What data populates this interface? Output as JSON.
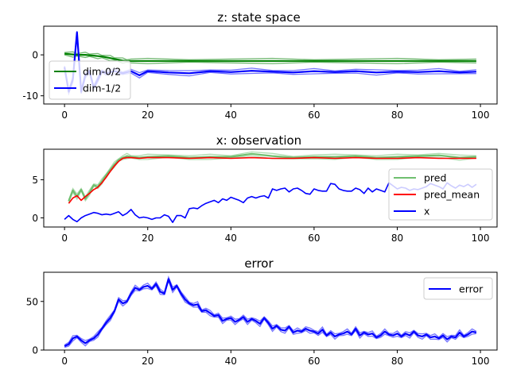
{
  "figure_colors": {
    "green": "#008000",
    "blue": "#0000ff",
    "red": "#ff0000",
    "light_green": "#6fbf6f",
    "light_blue": "#b8b8ff"
  },
  "chart_data": [
    {
      "type": "line",
      "title": "z: state space",
      "xlim": [
        -5,
        104
      ],
      "ylim": [
        -12,
        7
      ],
      "xticks": [
        0,
        20,
        40,
        60,
        80,
        100
      ],
      "yticks": [
        0,
        -10
      ],
      "legend_position": "center-left",
      "series": [
        {
          "name": "dim-0/2",
          "color": "#008000",
          "style": "thick band (multiple samples)",
          "x": [
            0,
            1,
            2,
            3,
            4,
            5,
            6,
            7,
            8,
            9,
            10,
            11,
            12,
            13,
            14,
            15,
            16,
            20,
            30,
            40,
            50,
            60,
            70,
            80,
            90,
            99
          ],
          "y": [
            0.3,
            0.2,
            0.1,
            0.0,
            0.0,
            0.0,
            -0.1,
            -0.2,
            -0.3,
            -0.4,
            -0.6,
            -0.8,
            -1.0,
            -1.2,
            -1.4,
            -1.5,
            -1.5,
            -1.5,
            -1.5,
            -1.5,
            -1.5,
            -1.5,
            -1.5,
            -1.5,
            -1.5,
            -1.5
          ]
        },
        {
          "name": "dim-1/2",
          "color": "#0000ff",
          "style": "noisy band (multiple samples)",
          "x": [
            0,
            1,
            2,
            3,
            4,
            5,
            6,
            7,
            8,
            9,
            10,
            12,
            14,
            16,
            18,
            20,
            25,
            30,
            35,
            40,
            45,
            50,
            55,
            60,
            65,
            70,
            75,
            80,
            85,
            90,
            95,
            99
          ],
          "y": [
            -3,
            -9,
            -6,
            5.5,
            -9,
            -5,
            -4,
            -8,
            -6,
            -4,
            -4.5,
            -4,
            -4.5,
            -4,
            -5,
            -4,
            -4.3,
            -4.5,
            -4,
            -4.2,
            -3.9,
            -4.1,
            -4.3,
            -4,
            -4.2,
            -4,
            -4.3,
            -4.1,
            -4.2,
            -4,
            -4.3,
            -4.1
          ]
        }
      ]
    },
    {
      "type": "line",
      "title": "x: observation",
      "xlim": [
        -5,
        104
      ],
      "ylim": [
        -1.2,
        9
      ],
      "xticks": [
        0,
        20,
        40,
        60,
        80,
        100
      ],
      "yticks": [
        0,
        5
      ],
      "legend_position": "center-right",
      "series": [
        {
          "name": "pred",
          "color": "#6fbf6f",
          "style": "semi-transparent, many samples",
          "x": [
            1,
            2,
            3,
            4,
            5,
            6,
            7,
            8,
            9,
            10,
            11,
            12,
            13,
            14,
            15,
            16,
            18,
            20,
            25,
            30,
            35,
            40,
            45,
            50,
            55,
            60,
            65,
            70,
            75,
            80,
            85,
            90,
            95,
            99
          ],
          "y": [
            2.2,
            3.6,
            2.8,
            3.7,
            2.5,
            3.3,
            4.3,
            4.1,
            4.8,
            5.6,
            6.3,
            7.0,
            7.6,
            7.9,
            8.1,
            8.0,
            7.9,
            8.0,
            8.1,
            7.9,
            8.0,
            8.0,
            8.4,
            8.1,
            7.9,
            8.0,
            8.0,
            8.1,
            7.9,
            8.0,
            8.1,
            8.2,
            7.9,
            8.0
          ]
        },
        {
          "name": "pred_mean",
          "color": "#ff0000",
          "x": [
            1,
            2,
            3,
            4,
            5,
            6,
            7,
            8,
            9,
            10,
            11,
            12,
            13,
            14,
            15,
            16,
            18,
            20,
            25,
            30,
            35,
            40,
            45,
            50,
            55,
            60,
            65,
            70,
            75,
            80,
            85,
            90,
            95,
            99
          ],
          "y": [
            1.9,
            2.6,
            2.9,
            2.3,
            2.8,
            3.2,
            3.7,
            4.0,
            4.6,
            5.3,
            6.1,
            6.8,
            7.4,
            7.8,
            7.9,
            7.9,
            7.8,
            7.9,
            7.9,
            7.8,
            7.9,
            7.8,
            7.9,
            7.8,
            7.8,
            7.9,
            7.8,
            7.9,
            7.8,
            7.8,
            7.9,
            7.8,
            7.8,
            7.8
          ]
        },
        {
          "name": "x",
          "color": "#0000ff",
          "x": [
            0,
            1,
            2,
            3,
            4,
            5,
            6,
            7,
            8,
            9,
            10,
            11,
            12,
            13,
            14,
            15,
            16,
            17,
            18,
            19,
            20,
            21,
            22,
            23,
            24,
            25,
            26,
            27,
            28,
            29,
            30,
            31,
            32,
            33,
            34,
            35,
            36,
            37,
            38,
            39,
            40,
            41,
            42,
            43,
            44,
            45,
            46,
            47,
            48,
            49,
            50,
            51,
            52,
            53,
            54,
            55,
            56,
            57,
            58,
            59,
            60,
            61,
            62,
            63,
            64,
            65,
            66,
            67,
            68,
            69,
            70,
            71,
            72,
            73,
            74,
            75,
            76,
            77,
            78,
            79,
            80,
            81,
            82,
            83,
            84,
            85,
            86,
            87,
            88,
            89,
            90,
            91,
            92,
            93,
            94,
            95,
            96,
            97,
            98,
            99
          ],
          "y": [
            -0.2,
            0.3,
            -0.2,
            -0.5,
            0.0,
            0.3,
            0.5,
            0.7,
            0.6,
            0.4,
            0.5,
            0.4,
            0.6,
            0.8,
            0.3,
            0.6,
            1.1,
            0.4,
            0.0,
            0.1,
            0.0,
            -0.2,
            0.0,
            0.0,
            0.4,
            0.2,
            -0.6,
            0.3,
            0.3,
            0.0,
            1.2,
            1.3,
            1.2,
            1.6,
            1.9,
            2.1,
            2.3,
            2.0,
            2.5,
            2.3,
            2.7,
            2.5,
            2.3,
            2.0,
            2.6,
            2.8,
            2.6,
            2.8,
            2.9,
            2.6,
            3.8,
            3.6,
            3.8,
            3.9,
            3.4,
            3.8,
            3.9,
            3.6,
            3.2,
            3.1,
            3.8,
            3.6,
            3.5,
            3.5,
            4.5,
            4.4,
            3.8,
            3.6,
            3.5,
            3.5,
            3.9,
            3.7,
            3.2,
            3.9,
            3.4,
            3.8,
            3.6,
            3.4,
            4.6,
            4.2,
            3.8,
            4.0,
            3.9,
            3.6,
            3.8,
            3.7,
            3.9,
            4.1,
            4.5,
            4.3,
            4.1,
            3.8,
            4.6,
            4.2,
            3.9,
            4.3,
            4.1,
            4.4,
            4.0,
            4.4
          ]
        }
      ]
    },
    {
      "type": "line",
      "title": "error",
      "xlim": [
        -5,
        104
      ],
      "ylim": [
        0,
        80
      ],
      "xticks": [
        0,
        20,
        40,
        60,
        80,
        100
      ],
      "yticks": [
        0,
        50
      ],
      "legend_position": "top-right",
      "series": [
        {
          "name": "error",
          "color": "#0000ff",
          "style": "thick band (multiple samples)",
          "x": [
            0,
            1,
            2,
            3,
            4,
            5,
            6,
            7,
            8,
            9,
            10,
            11,
            12,
            13,
            14,
            15,
            16,
            17,
            18,
            19,
            20,
            21,
            22,
            23,
            24,
            25,
            26,
            27,
            28,
            29,
            30,
            31,
            32,
            33,
            34,
            35,
            36,
            37,
            38,
            39,
            40,
            41,
            42,
            43,
            44,
            45,
            46,
            47,
            48,
            49,
            50,
            51,
            52,
            53,
            54,
            55,
            56,
            57,
            58,
            59,
            60,
            61,
            62,
            63,
            64,
            65,
            66,
            67,
            68,
            69,
            70,
            71,
            72,
            73,
            74,
            75,
            76,
            77,
            78,
            79,
            80,
            81,
            82,
            83,
            84,
            85,
            86,
            87,
            88,
            89,
            90,
            91,
            92,
            93,
            94,
            95,
            96,
            97,
            98,
            99
          ],
          "y": [
            4,
            6,
            12,
            14,
            10,
            7,
            10,
            12,
            16,
            22,
            28,
            33,
            40,
            52,
            48,
            50,
            58,
            64,
            62,
            65,
            66,
            63,
            68,
            60,
            58,
            73,
            62,
            66,
            58,
            52,
            48,
            46,
            47,
            40,
            41,
            38,
            35,
            36,
            30,
            32,
            33,
            29,
            31,
            34,
            29,
            32,
            30,
            27,
            33,
            28,
            22,
            25,
            21,
            20,
            24,
            18,
            20,
            19,
            22,
            20,
            19,
            17,
            21,
            15,
            18,
            14,
            16,
            17,
            19,
            16,
            22,
            15,
            18,
            16,
            17,
            13,
            15,
            19,
            16,
            15,
            17,
            14,
            17,
            15,
            19,
            15,
            14,
            16,
            13,
            14,
            12,
            15,
            11,
            14,
            13,
            18,
            14,
            16,
            19,
            18
          ]
        }
      ]
    }
  ]
}
